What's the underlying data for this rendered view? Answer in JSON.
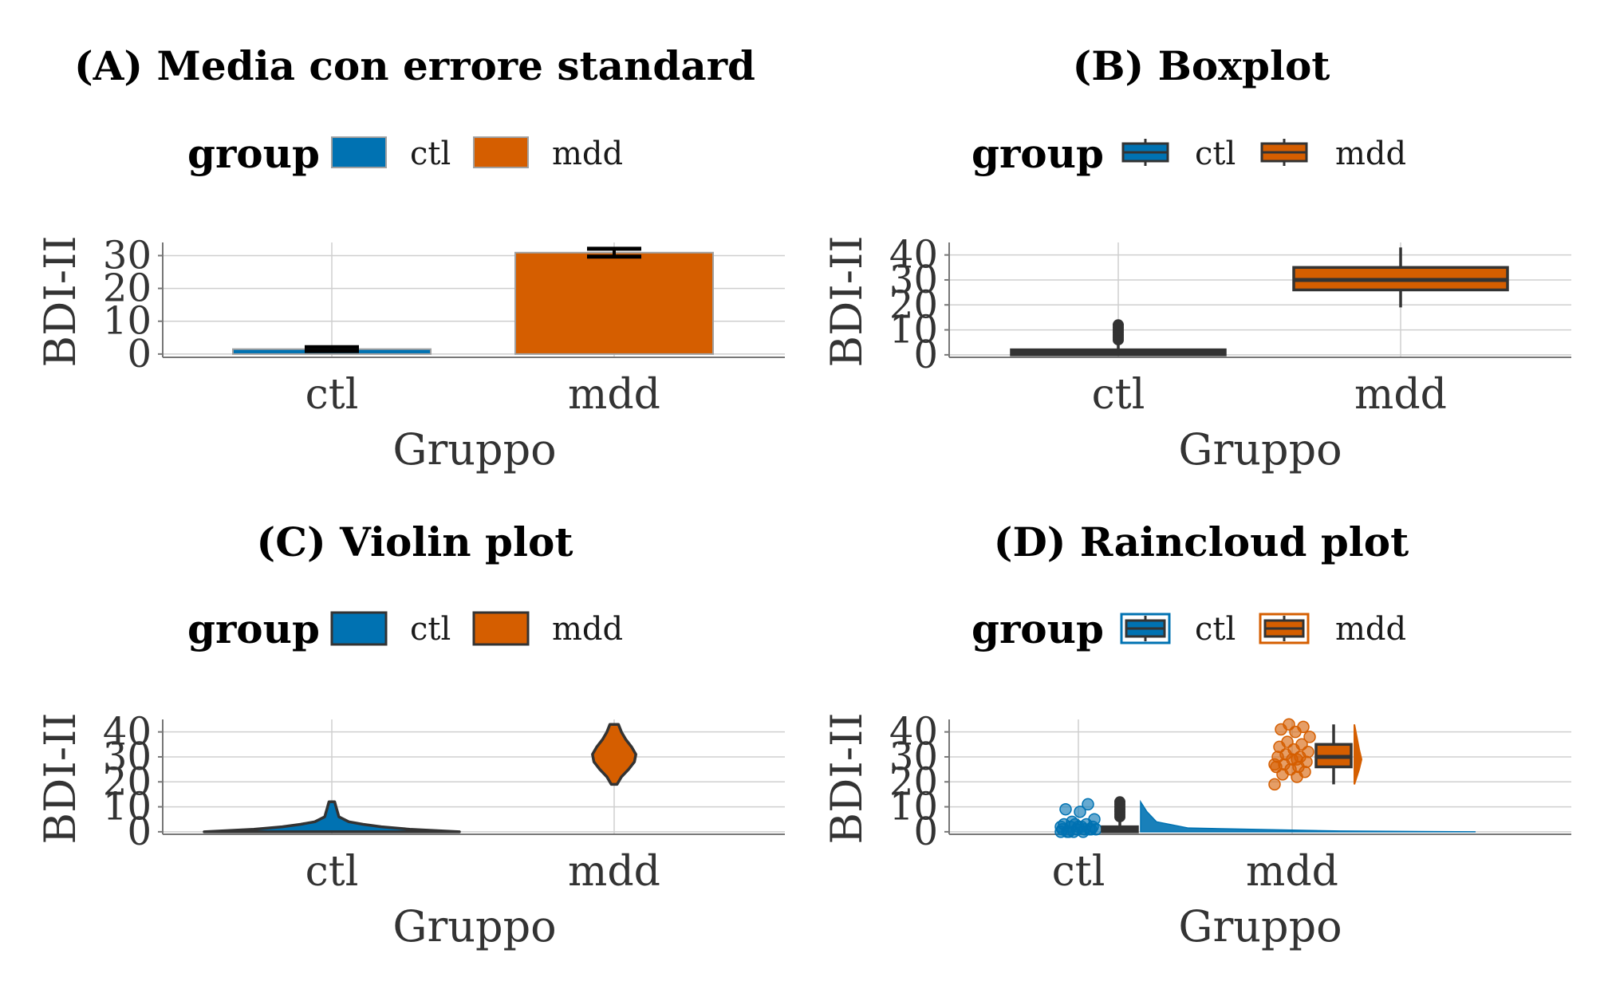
{
  "colors": {
    "ctl": "#0072B2",
    "mdd": "#D55E00",
    "outline": "#333333"
  },
  "legend": {
    "title": "group",
    "labels": [
      "ctl",
      "mdd"
    ]
  },
  "chart_data": [
    {
      "id": "A",
      "type": "bar",
      "title": "(A) Media con errore standard",
      "xlabel": "Gruppo",
      "ylabel": "BDI-II",
      "categories": [
        "ctl",
        "mdd"
      ],
      "values": [
        1.5,
        30.9
      ],
      "se": [
        0.6,
        1.2
      ],
      "ylim": [
        -1,
        34
      ],
      "yticks": [
        0,
        10,
        20,
        30
      ],
      "grid": true,
      "legend_position": "top"
    },
    {
      "id": "B",
      "type": "boxplot",
      "title": "(B) Boxplot",
      "xlabel": "Gruppo",
      "ylabel": "BDI-II",
      "categories": [
        "ctl",
        "mdd"
      ],
      "boxes": [
        {
          "min": 0,
          "q1": 0,
          "median": 1,
          "q3": 2,
          "max": 4,
          "outliers": [
            6,
            7,
            8,
            9,
            10,
            11,
            12
          ]
        },
        {
          "min": 19,
          "q1": 26,
          "median": 30,
          "q3": 35,
          "max": 43,
          "outliers": []
        }
      ],
      "ylim": [
        -1,
        45
      ],
      "yticks": [
        0,
        10,
        20,
        30,
        40
      ],
      "grid": true,
      "legend_position": "top"
    },
    {
      "id": "C",
      "type": "violin",
      "title": "(C) Violin plot",
      "xlabel": "Gruppo",
      "ylabel": "BDI-II",
      "categories": [
        "ctl",
        "mdd"
      ],
      "violins": [
        {
          "y": [
            0,
            1,
            2,
            3,
            4,
            6,
            8,
            10,
            12
          ],
          "width": [
            0.9,
            0.55,
            0.35,
            0.22,
            0.12,
            0.05,
            0.04,
            0.03,
            0.02
          ]
        },
        {
          "y": [
            19,
            22,
            25,
            28,
            31,
            34,
            37,
            40,
            43
          ],
          "width": [
            0.02,
            0.05,
            0.1,
            0.14,
            0.15,
            0.12,
            0.08,
            0.05,
            0.03
          ]
        }
      ],
      "ylim": [
        -1,
        45
      ],
      "yticks": [
        0,
        10,
        20,
        30,
        40
      ],
      "grid": true,
      "legend_position": "top"
    },
    {
      "id": "D",
      "type": "raincloud",
      "title": "(D) Raincloud plot",
      "xlabel": "Gruppo",
      "ylabel": "BDI-II",
      "categories": [
        "ctl",
        "mdd"
      ],
      "points": [
        [
          0,
          0,
          0,
          1,
          1,
          1,
          1,
          2,
          2,
          2,
          3,
          3,
          4,
          5,
          8,
          9,
          11,
          0,
          1,
          2,
          0,
          1,
          3,
          2
        ],
        [
          19,
          22,
          23,
          24,
          25,
          26,
          26,
          27,
          28,
          29,
          30,
          30,
          31,
          32,
          33,
          34,
          35,
          36,
          38,
          40,
          41,
          42,
          43,
          27,
          29
        ]
      ],
      "boxes": [
        {
          "min": 0,
          "q1": 0,
          "median": 1,
          "q3": 2,
          "max": 4,
          "outliers": [
            6,
            7,
            8,
            9,
            10,
            11,
            12
          ]
        },
        {
          "min": 19,
          "q1": 26,
          "median": 30,
          "q3": 35,
          "max": 43,
          "outliers": []
        }
      ],
      "ylim": [
        -1,
        45
      ],
      "yticks": [
        0,
        10,
        20,
        30,
        40
      ],
      "grid": true,
      "legend_position": "top"
    }
  ]
}
